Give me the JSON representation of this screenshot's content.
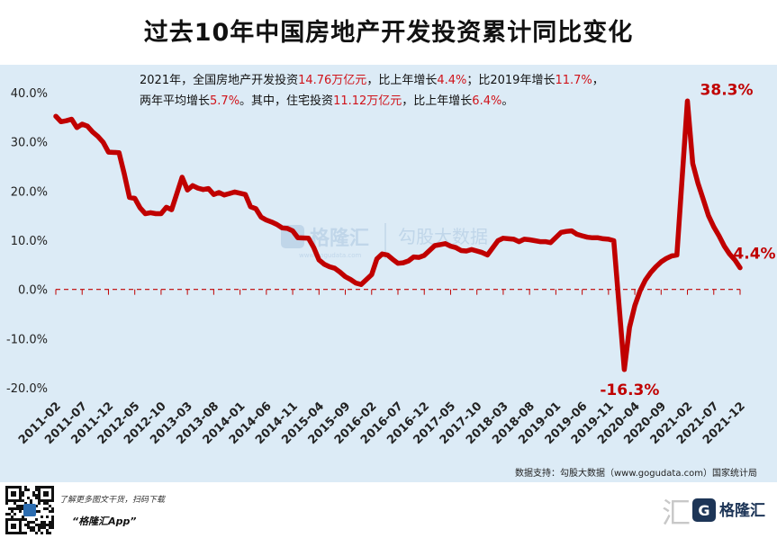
{
  "title": "过去10年中国房地产开发投资累计同比变化",
  "note": {
    "l1_a": "2021年，全国房地产开发投资",
    "l1_b": "14.76万亿元",
    "l1_c": "，比上年增长",
    "l1_d": "4.4%",
    "l1_e": "；比2019年增长",
    "l1_f": "11.7%",
    "l1_g": "，",
    "l2_a": "两年平均增长",
    "l2_b": "5.7%",
    "l2_c": "。其中，住宅投资",
    "l2_d": "11.12万亿元",
    "l2_e": "，比上年增长",
    "l2_f": "6.4%",
    "l2_g": "。"
  },
  "source": "数据支持：勾股大数据（www.gogudata.com）国家统计局",
  "watermark": {
    "brand": "格隆汇",
    "site": "勾股大数据",
    "url": "www.gogudata.com"
  },
  "footer": {
    "promo_line1": "了解更多图文干货，扫码下载",
    "promo_line2": "“格隆汇App”",
    "logo_text": "格隆汇",
    "wm_char": "汇"
  },
  "colors": {
    "line": "#c00000",
    "zero_line": "#c00000",
    "background": "#dcebf6",
    "annotation": "#c00000"
  },
  "chart_data": {
    "type": "line",
    "title": "过去10年中国房地产开发投资累计同比变化",
    "y_unit": "%",
    "ylim": [
      -20,
      40
    ],
    "yticks": [
      "40.0%",
      "30.0%",
      "20.0%",
      "10.0%",
      "0.0%",
      "-10.0%",
      "-20.0%"
    ],
    "xticks": [
      "2011-02",
      "2011-07",
      "2011-12",
      "2012-05",
      "2012-10",
      "2013-03",
      "2013-08",
      "2014-01",
      "2014-06",
      "2014-11",
      "2015-04",
      "2015-09",
      "2016-02",
      "2016-07",
      "2016-12",
      "2017-05",
      "2017-10",
      "2018-03",
      "2018-08",
      "2019-01",
      "2019-06",
      "2019-11",
      "2020-04",
      "2020-09",
      "2021-02",
      "2021-07",
      "2021-12"
    ],
    "grid": false,
    "reference_line": {
      "y": 0,
      "style": "dashed"
    },
    "annotations": [
      {
        "x": "2021-02",
        "label": "38.3%"
      },
      {
        "x": "2020-02",
        "label": "-16.3%"
      },
      {
        "x": "2021-12",
        "label": "4.4%"
      }
    ],
    "series": [
      {
        "x": [
          "2011-02",
          "2011-03",
          "2011-04",
          "2011-05",
          "2011-06",
          "2011-07",
          "2011-08",
          "2011-09",
          "2011-10",
          "2011-11",
          "2011-12",
          "2012-02",
          "2012-03",
          "2012-04",
          "2012-05",
          "2012-06",
          "2012-07",
          "2012-08",
          "2012-09",
          "2012-10",
          "2012-11",
          "2012-12",
          "2013-02",
          "2013-03",
          "2013-04",
          "2013-05",
          "2013-06",
          "2013-07",
          "2013-08",
          "2013-09",
          "2013-10",
          "2013-11",
          "2013-12",
          "2014-02",
          "2014-03",
          "2014-04",
          "2014-05",
          "2014-06",
          "2014-07",
          "2014-08",
          "2014-09",
          "2014-10",
          "2014-11",
          "2014-12",
          "2015-02",
          "2015-03",
          "2015-04",
          "2015-05",
          "2015-06",
          "2015-07",
          "2015-08",
          "2015-09",
          "2015-10",
          "2015-11",
          "2015-12",
          "2016-02",
          "2016-03",
          "2016-04",
          "2016-05",
          "2016-06",
          "2016-07",
          "2016-08",
          "2016-09",
          "2016-10",
          "2016-11",
          "2016-12",
          "2017-02",
          "2017-03",
          "2017-04",
          "2017-05",
          "2017-06",
          "2017-07",
          "2017-08",
          "2017-09",
          "2017-10",
          "2017-11",
          "2017-12",
          "2018-02",
          "2018-03",
          "2018-04",
          "2018-05",
          "2018-06",
          "2018-07",
          "2018-08",
          "2018-09",
          "2018-10",
          "2018-11",
          "2018-12",
          "2019-02",
          "2019-03",
          "2019-04",
          "2019-05",
          "2019-06",
          "2019-07",
          "2019-08",
          "2019-09",
          "2019-10",
          "2019-11",
          "2019-12",
          "2020-02",
          "2020-03",
          "2020-04",
          "2020-05",
          "2020-06",
          "2020-07",
          "2020-08",
          "2020-09",
          "2020-10",
          "2020-11",
          "2020-12",
          "2021-02",
          "2021-03",
          "2021-04",
          "2021-05",
          "2021-06",
          "2021-07",
          "2021-08",
          "2021-09",
          "2021-10",
          "2021-11",
          "2021-12"
        ],
        "values": [
          35.2,
          34.1,
          34.3,
          34.6,
          32.9,
          33.6,
          33.2,
          32.0,
          31.1,
          29.9,
          27.9,
          27.8,
          23.5,
          18.7,
          18.5,
          16.6,
          15.4,
          15.6,
          15.4,
          15.4,
          16.7,
          16.2,
          22.8,
          20.2,
          21.1,
          20.6,
          20.3,
          20.5,
          19.3,
          19.7,
          19.2,
          19.5,
          19.8,
          19.3,
          16.8,
          16.4,
          14.7,
          14.1,
          13.7,
          13.2,
          12.5,
          12.4,
          11.9,
          10.5,
          10.4,
          8.5,
          6.0,
          5.1,
          4.6,
          4.3,
          3.5,
          2.6,
          2.0,
          1.3,
          1.0,
          3.0,
          6.2,
          7.2,
          7.0,
          6.1,
          5.3,
          5.4,
          5.8,
          6.6,
          6.5,
          6.9,
          8.9,
          9.1,
          9.3,
          8.8,
          8.5,
          7.9,
          7.8,
          8.1,
          7.8,
          7.5,
          7.0,
          9.9,
          10.4,
          10.3,
          10.2,
          9.7,
          10.2,
          10.1,
          9.9,
          9.7,
          9.7,
          9.5,
          11.6,
          11.8,
          11.9,
          11.2,
          10.9,
          10.6,
          10.5,
          10.5,
          10.3,
          10.2,
          9.9,
          -16.3,
          -7.7,
          -3.3,
          -0.3,
          1.9,
          3.4,
          4.6,
          5.6,
          6.3,
          6.8,
          7.0,
          38.3,
          25.6,
          21.6,
          18.3,
          15.0,
          12.7,
          10.9,
          8.8,
          7.2,
          6.0,
          4.4
        ]
      }
    ]
  }
}
